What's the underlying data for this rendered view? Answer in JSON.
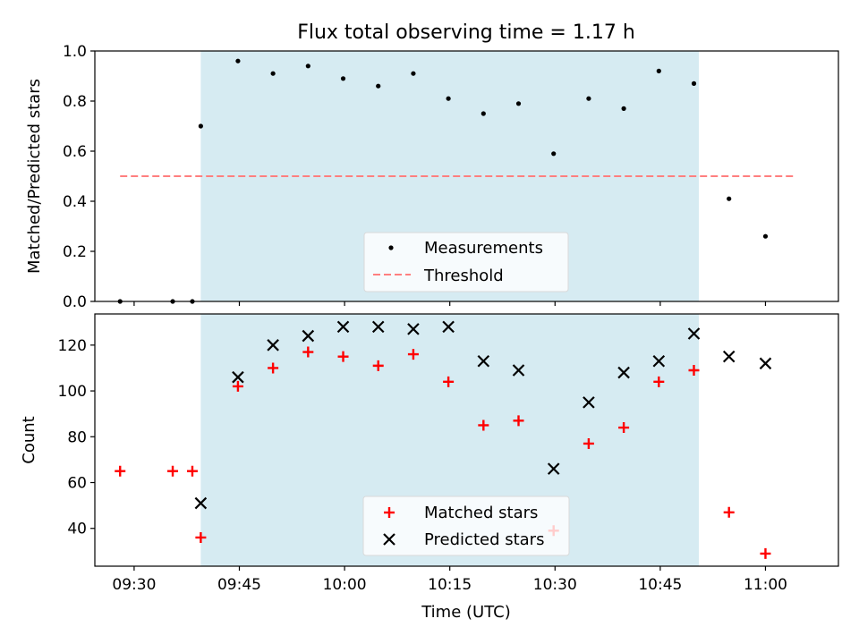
{
  "figure": {
    "title": "Flux total observing time = 1.17 h",
    "xlabel": "Time (UTC)"
  },
  "chart_data": [
    {
      "type": "scatter",
      "ylabel": "Matched/Predicted stars",
      "ylim": [
        0,
        1.0
      ],
      "yticks": [
        0.0,
        0.2,
        0.4,
        0.6,
        0.8,
        1.0
      ],
      "ytick_labels": [
        "0.0",
        "0.2",
        "0.4",
        "0.6",
        "0.8",
        "1.0"
      ],
      "xlim_min": [
        564.4,
        670.4
      ],
      "shaded_region_min": [
        579.5,
        650.5
      ],
      "legend": [
        "Measurements",
        "Threshold"
      ],
      "legend_loc": "lower center",
      "series": [
        {
          "name": "Measurements",
          "marker": "dot",
          "color": "#000000",
          "x_min": [
            568.0,
            575.5,
            578.3,
            579.5,
            584.8,
            589.8,
            594.8,
            599.8,
            604.8,
            609.8,
            614.8,
            619.8,
            624.8,
            629.8,
            634.8,
            639.8,
            644.8,
            649.8,
            654.8,
            660.0
          ],
          "y": [
            0.0,
            0.0,
            0.0,
            0.7,
            0.96,
            0.91,
            0.94,
            0.89,
            0.86,
            0.91,
            0.81,
            0.75,
            0.79,
            0.59,
            0.81,
            0.77,
            0.92,
            0.87,
            0.41,
            0.26
          ]
        },
        {
          "name": "Threshold",
          "line": "dashed",
          "color": "#ff7f7f",
          "x_min": [
            568.0,
            664.4
          ],
          "y": [
            0.5,
            0.5
          ]
        }
      ]
    },
    {
      "type": "scatter",
      "ylabel": "Count",
      "ylim": [
        23.5,
        133.6
      ],
      "yticks": [
        40,
        60,
        80,
        100,
        120
      ],
      "ytick_labels": [
        "40",
        "60",
        "80",
        "100",
        "120"
      ],
      "xlim_min": [
        564.4,
        670.4
      ],
      "xticks_min": [
        570,
        585,
        600,
        615,
        630,
        645,
        660
      ],
      "xtick_labels": [
        "09:30",
        "09:45",
        "10:00",
        "10:15",
        "10:30",
        "10:45",
        "11:00"
      ],
      "shaded_region_min": [
        579.5,
        650.5
      ],
      "legend": [
        "Matched stars",
        "Predicted stars"
      ],
      "legend_loc": "lower center",
      "series": [
        {
          "name": "Matched stars",
          "marker": "plus",
          "color": "#ff0000",
          "x_min": [
            568.0,
            575.5,
            578.3,
            579.5,
            584.8,
            589.8,
            594.8,
            599.8,
            604.8,
            609.8,
            614.8,
            619.8,
            624.8,
            629.8,
            634.8,
            639.8,
            644.8,
            649.8,
            654.8,
            660.0
          ],
          "y": [
            65,
            65,
            65,
            36,
            102,
            110,
            117,
            115,
            111,
            116,
            104,
            85,
            87,
            39,
            77,
            84,
            104,
            109,
            47,
            29
          ]
        },
        {
          "name": "Predicted stars",
          "marker": "x",
          "color": "#000000",
          "x_min": [
            579.5,
            584.8,
            589.8,
            594.8,
            599.8,
            604.8,
            609.8,
            614.8,
            619.8,
            624.8,
            629.8,
            634.8,
            639.8,
            644.8,
            649.8,
            654.8,
            660.0
          ],
          "y": [
            51,
            106,
            120,
            124,
            128,
            128,
            127,
            128,
            113,
            109,
            66,
            95,
            108,
            113,
            125,
            115,
            112
          ]
        }
      ]
    }
  ]
}
